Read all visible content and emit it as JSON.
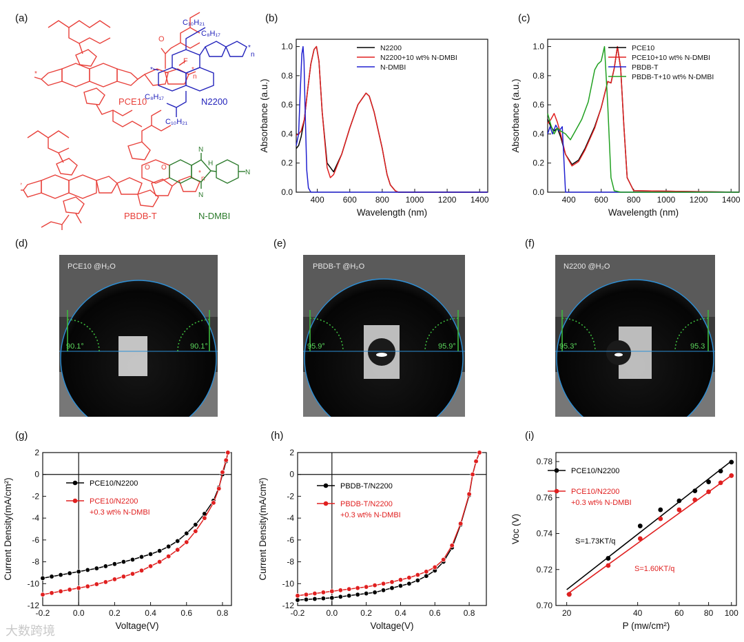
{
  "panel_labels": [
    "(a)",
    "(b)",
    "(c)",
    "(d)",
    "(e)",
    "(f)",
    "(g)",
    "(h)",
    "(i)"
  ],
  "structures": {
    "pce10": "PCE10",
    "n2200": "N2200",
    "pbdbt": "PBDB-T",
    "ndmbi": "N-DMBI",
    "c10h21": "C₁₀H₂₁",
    "c8h17": "C₈H₁₇",
    "fluorine": "F",
    "sulfur": "S",
    "oxygen": "O",
    "nitrogen": "N",
    "hydrogen": "H",
    "n_repeat": "n",
    "colors": {
      "pce10": "#e8403a",
      "n2200": "#2222bb",
      "pbdbt": "#e8403a",
      "ndmbi": "#2b7a2b"
    }
  },
  "contact": [
    {
      "label": "PCE10 @H₂O",
      "left_angle": "90.1°",
      "right_angle": "90.1°",
      "drop": false
    },
    {
      "label": "PBDB-T @H₂O",
      "left_angle": "95.9°",
      "right_angle": "95.9°",
      "drop": true
    },
    {
      "label": "N2200 @H₂O",
      "left_angle": "95.3°",
      "right_angle": "95.3",
      "drop": true
    }
  ],
  "watermark": "大数跨境",
  "chart_data": [
    {
      "id": "b",
      "type": "line",
      "xlabel": "Wavelength (nm)",
      "ylabel": "Absorbance (a.u.)",
      "xlim": [
        270,
        1450
      ],
      "ylim": [
        0,
        1.05
      ],
      "xticks": [
        400,
        600,
        800,
        1000,
        1200,
        1400
      ],
      "yticks": [
        0.0,
        0.2,
        0.4,
        0.6,
        0.8,
        1.0
      ],
      "legend": "top-right",
      "series": [
        {
          "name": "N2200",
          "color": "#000000",
          "x": [
            270,
            285,
            300,
            320,
            340,
            360,
            380,
            395,
            410,
            430,
            460,
            500,
            550,
            600,
            650,
            700,
            720,
            750,
            800,
            830,
            850,
            880,
            900,
            1000,
            1200,
            1450
          ],
          "y": [
            0.3,
            0.32,
            0.38,
            0.5,
            0.7,
            0.88,
            0.98,
            1.0,
            0.9,
            0.55,
            0.2,
            0.14,
            0.26,
            0.44,
            0.6,
            0.68,
            0.66,
            0.55,
            0.3,
            0.12,
            0.05,
            0.01,
            0.0,
            0.0,
            0.0,
            0.0
          ]
        },
        {
          "name": "N2200+10 wt% N-DMBI",
          "color": "#e02020",
          "x": [
            270,
            285,
            300,
            320,
            340,
            360,
            380,
            395,
            410,
            430,
            460,
            480,
            500,
            550,
            600,
            650,
            700,
            720,
            750,
            800,
            830,
            850,
            880,
            900,
            1000,
            1200,
            1450
          ],
          "y": [
            0.39,
            0.4,
            0.42,
            0.5,
            0.7,
            0.88,
            0.98,
            1.0,
            0.9,
            0.55,
            0.17,
            0.1,
            0.12,
            0.26,
            0.44,
            0.6,
            0.68,
            0.66,
            0.55,
            0.3,
            0.12,
            0.05,
            0.01,
            0.0,
            0.0,
            0.0,
            0.0
          ]
        },
        {
          "name": "N-DMBI",
          "color": "#2020d0",
          "x": [
            270,
            285,
            295,
            305,
            312,
            318,
            325,
            335,
            345,
            360,
            380,
            1450
          ],
          "y": [
            0.32,
            0.4,
            0.7,
            0.95,
            1.0,
            0.9,
            0.55,
            0.15,
            0.03,
            0.0,
            0.0,
            0.0
          ]
        }
      ]
    },
    {
      "id": "c",
      "type": "line",
      "xlabel": "Wavelength (nm)",
      "ylabel": "Absorbance (a.u.)",
      "xlim": [
        270,
        1450
      ],
      "ylim": [
        0,
        1.05
      ],
      "xticks": [
        400,
        600,
        800,
        1000,
        1200,
        1400
      ],
      "yticks": [
        0.0,
        0.2,
        0.4,
        0.6,
        0.8,
        1.0
      ],
      "legend": "top-right",
      "series": [
        {
          "name": "PCE10",
          "color": "#000000",
          "x": [
            270,
            290,
            310,
            330,
            350,
            380,
            420,
            460,
            500,
            560,
            600,
            640,
            660,
            680,
            700,
            720,
            740,
            760,
            800,
            1450
          ],
          "y": [
            0.5,
            0.45,
            0.42,
            0.44,
            0.38,
            0.26,
            0.19,
            0.22,
            0.3,
            0.45,
            0.58,
            0.76,
            0.75,
            0.85,
            1.0,
            0.85,
            0.45,
            0.1,
            0.01,
            0.0
          ]
        },
        {
          "name": "PCE10+10 wt% N-DMBI",
          "color": "#e02020",
          "x": [
            270,
            290,
            310,
            330,
            350,
            380,
            420,
            460,
            500,
            560,
            600,
            640,
            660,
            680,
            700,
            720,
            740,
            760,
            800,
            1450
          ],
          "y": [
            0.47,
            0.5,
            0.54,
            0.48,
            0.4,
            0.26,
            0.18,
            0.21,
            0.29,
            0.44,
            0.58,
            0.76,
            0.75,
            0.85,
            1.0,
            0.85,
            0.45,
            0.1,
            0.01,
            0.0
          ]
        },
        {
          "name": "PBDB-T",
          "color": "#2020d0",
          "x": [
            270,
            285,
            300,
            320,
            340,
            360,
            380,
            1450
          ],
          "y": [
            0.4,
            0.45,
            0.4,
            0.46,
            0.42,
            0.45,
            0.0,
            0.0
          ]
        },
        {
          "name": "PBDB-T+10 wt% N-DMBI",
          "color": "#20a020",
          "x": [
            270,
            290,
            310,
            330,
            350,
            380,
            410,
            440,
            480,
            520,
            560,
            580,
            600,
            620,
            640,
            660,
            680,
            720,
            1450
          ],
          "y": [
            0.54,
            0.46,
            0.4,
            0.44,
            0.42,
            0.4,
            0.36,
            0.42,
            0.5,
            0.62,
            0.84,
            0.88,
            0.9,
            1.0,
            0.6,
            0.1,
            0.01,
            0.0,
            0.0
          ]
        }
      ]
    },
    {
      "id": "g",
      "type": "line",
      "xlabel": "Voltage(V)",
      "ylabel": "Current Density(mA/cm²)",
      "xlim": [
        -0.2,
        0.85
      ],
      "ylim": [
        -12,
        2
      ],
      "xticks": [
        -0.2,
        0.0,
        0.2,
        0.4,
        0.6,
        0.8
      ],
      "yticks": [
        2,
        0,
        -2,
        -4,
        -6,
        -8,
        -10,
        -12
      ],
      "legend": "center",
      "series": [
        {
          "name": "PCE10/N2200",
          "color": "#000000",
          "marker": "circle",
          "x": [
            -0.2,
            -0.15,
            -0.1,
            -0.05,
            0.0,
            0.05,
            0.1,
            0.15,
            0.2,
            0.25,
            0.3,
            0.35,
            0.4,
            0.45,
            0.5,
            0.55,
            0.6,
            0.65,
            0.7,
            0.75,
            0.78,
            0.8,
            0.82,
            0.83
          ],
          "y": [
            -9.5,
            -9.35,
            -9.2,
            -9.05,
            -8.9,
            -8.75,
            -8.6,
            -8.4,
            -8.2,
            -8.0,
            -7.8,
            -7.55,
            -7.3,
            -7.0,
            -6.6,
            -6.1,
            -5.4,
            -4.6,
            -3.6,
            -2.4,
            -1.2,
            0.0,
            1.2,
            2.0
          ]
        },
        {
          "name": "PCE10/N2200 +0.3 wt% N-DMBI",
          "color": "#e02020",
          "marker": "circle",
          "x": [
            -0.2,
            -0.15,
            -0.1,
            -0.05,
            0.0,
            0.05,
            0.1,
            0.15,
            0.2,
            0.25,
            0.3,
            0.35,
            0.4,
            0.45,
            0.5,
            0.55,
            0.6,
            0.65,
            0.7,
            0.75,
            0.78,
            0.8,
            0.82,
            0.83
          ],
          "y": [
            -11.0,
            -10.85,
            -10.7,
            -10.55,
            -10.4,
            -10.25,
            -10.05,
            -9.85,
            -9.6,
            -9.35,
            -9.1,
            -8.8,
            -8.4,
            -8.0,
            -7.5,
            -6.9,
            -6.2,
            -5.2,
            -4.0,
            -2.6,
            -1.3,
            0.2,
            1.3,
            2.0
          ]
        }
      ]
    },
    {
      "id": "h",
      "type": "line",
      "xlabel": "Voltage(V)",
      "ylabel": "Current Density(mA/cm²)",
      "xlim": [
        -0.2,
        0.9
      ],
      "ylim": [
        -12,
        2
      ],
      "xticks": [
        -0.2,
        0.0,
        0.2,
        0.4,
        0.6,
        0.8
      ],
      "yticks": [
        2,
        0,
        -2,
        -4,
        -6,
        -8,
        -10,
        -12
      ],
      "legend": "center",
      "series": [
        {
          "name": "PBDB-T/N2200",
          "color": "#000000",
          "marker": "circle",
          "x": [
            -0.2,
            -0.15,
            -0.1,
            -0.05,
            0.0,
            0.05,
            0.1,
            0.15,
            0.2,
            0.25,
            0.3,
            0.35,
            0.4,
            0.45,
            0.5,
            0.55,
            0.6,
            0.65,
            0.7,
            0.75,
            0.8,
            0.82,
            0.84,
            0.86
          ],
          "y": [
            -11.5,
            -11.45,
            -11.4,
            -11.35,
            -11.3,
            -11.2,
            -11.1,
            -11.0,
            -10.9,
            -10.8,
            -10.6,
            -10.4,
            -10.2,
            -10.0,
            -9.7,
            -9.3,
            -8.8,
            -8.0,
            -6.7,
            -4.6,
            -1.9,
            0.0,
            1.2,
            2.0
          ]
        },
        {
          "name": "PBDB-T/N2200 +0.3 wt% N-DMBI",
          "color": "#e02020",
          "marker": "circle",
          "x": [
            -0.2,
            -0.15,
            -0.1,
            -0.05,
            0.0,
            0.05,
            0.1,
            0.15,
            0.2,
            0.25,
            0.3,
            0.35,
            0.4,
            0.45,
            0.5,
            0.55,
            0.6,
            0.65,
            0.7,
            0.75,
            0.8,
            0.82,
            0.84,
            0.86
          ],
          "y": [
            -11.1,
            -11.0,
            -10.9,
            -10.8,
            -10.7,
            -10.6,
            -10.5,
            -10.4,
            -10.3,
            -10.15,
            -10.0,
            -9.85,
            -9.65,
            -9.45,
            -9.2,
            -8.9,
            -8.5,
            -7.8,
            -6.5,
            -4.5,
            -1.8,
            0.0,
            1.2,
            2.0
          ]
        }
      ]
    },
    {
      "id": "i",
      "type": "scatter",
      "xlabel": "P (mw/cm²)",
      "ylabel": "Voc (V)",
      "xscale": "log",
      "xlim": [
        18,
        105
      ],
      "ylim": [
        0.7,
        0.785
      ],
      "xticks": [
        20,
        40,
        60,
        80,
        100
      ],
      "yticks": [
        0.7,
        0.72,
        0.74,
        0.76,
        0.78
      ],
      "legend": "top-left",
      "annotations": [
        {
          "text": "S=1.73KT/q",
          "color": "#000000"
        },
        {
          "text": "S=1.60KT/q",
          "color": "#e02020"
        }
      ],
      "series": [
        {
          "name": "PCE10/N2200",
          "color": "#000000",
          "x": [
            20.5,
            30,
            41,
            50,
            60,
            70,
            80,
            90,
            100
          ],
          "y": [
            0.7062,
            0.7262,
            0.7442,
            0.7532,
            0.7582,
            0.7637,
            0.7687,
            0.7747,
            0.7797
          ],
          "fit": [
            [
              20,
              0.7088
            ],
            [
              100,
              0.7803
            ]
          ]
        },
        {
          "name": "PCE10/N2200 +0.3 wt% N-DMBI",
          "color": "#e02020",
          "x": [
            20.5,
            30,
            41,
            50,
            60,
            70,
            80,
            90,
            100
          ],
          "y": [
            0.7062,
            0.7222,
            0.7372,
            0.7482,
            0.7532,
            0.7587,
            0.7632,
            0.7682,
            0.7722
          ],
          "fit": [
            [
              20,
              0.7061
            ],
            [
              100,
              0.7723
            ]
          ]
        }
      ]
    }
  ]
}
